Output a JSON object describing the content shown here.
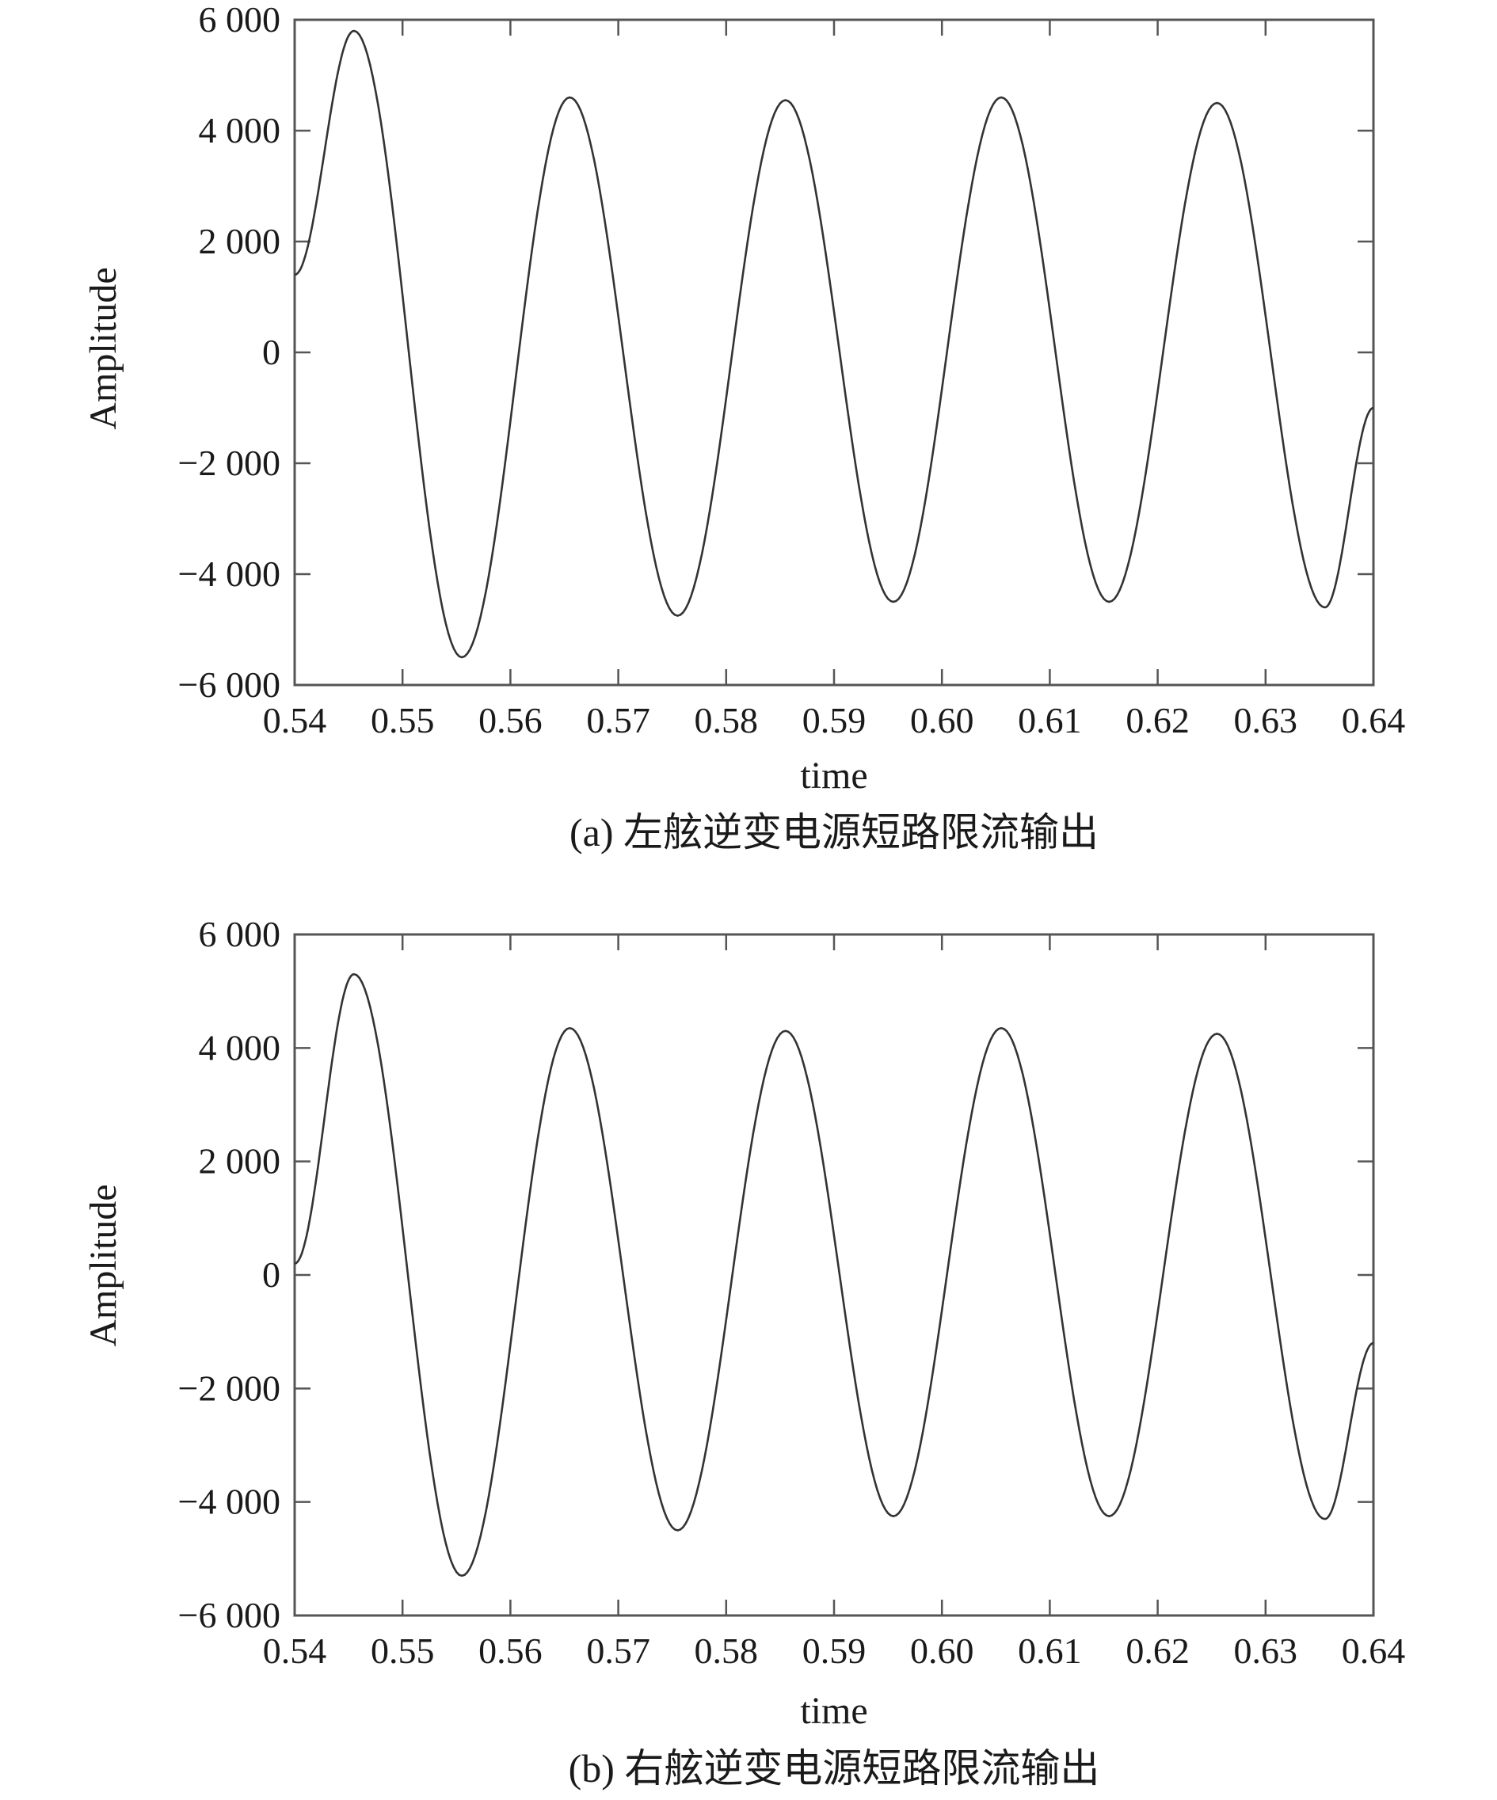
{
  "chart_data": [
    {
      "type": "line",
      "caption": "(a) 左舷逆变电源短路限流输出",
      "xlabel": "time",
      "ylabel": "Amplitude",
      "xlim": [
        0.54,
        0.64
      ],
      "ylim": [
        -6000,
        6000
      ],
      "xticks": [
        0.54,
        0.55,
        0.56,
        0.57,
        0.58,
        0.59,
        0.6,
        0.61,
        0.62,
        0.63,
        0.64
      ],
      "xtick_labels": [
        "0.54",
        "0.55",
        "0.56",
        "0.57",
        "0.58",
        "0.59",
        "0.60",
        "0.61",
        "0.62",
        "0.63",
        "0.64"
      ],
      "yticks": [
        6000,
        4000,
        2000,
        0,
        -2000,
        -4000,
        -6000
      ],
      "ytick_labels": [
        "6 000",
        "4 000",
        "2 000",
        "0",
        "−2 000",
        "−4 000",
        "−6 000"
      ],
      "grid": false,
      "series": [
        {
          "color": "#333333",
          "x": [
            0.54,
            0.5455,
            0.5555,
            0.5655,
            0.5755,
            0.5855,
            0.5955,
            0.6055,
            0.6155,
            0.6255,
            0.6355,
            0.64
          ],
          "y": [
            1400,
            5800,
            -5500,
            4600,
            -4750,
            4550,
            -4500,
            4600,
            -4500,
            4500,
            -4600,
            -1000
          ]
        }
      ]
    },
    {
      "type": "line",
      "caption": "(b) 右舷逆变电源短路限流输出",
      "xlabel": "time",
      "ylabel": "Amplitude",
      "xlim": [
        0.54,
        0.64
      ],
      "ylim": [
        -6000,
        6000
      ],
      "xticks": [
        0.54,
        0.55,
        0.56,
        0.57,
        0.58,
        0.59,
        0.6,
        0.61,
        0.62,
        0.63,
        0.64
      ],
      "xtick_labels": [
        "0.54",
        "0.55",
        "0.56",
        "0.57",
        "0.58",
        "0.59",
        "0.60",
        "0.61",
        "0.62",
        "0.63",
        "0.64"
      ],
      "yticks": [
        6000,
        4000,
        2000,
        0,
        -2000,
        -4000,
        -6000
      ],
      "ytick_labels": [
        "6 000",
        "4 000",
        "2 000",
        "0",
        "−2 000",
        "−4 000",
        "−6 000"
      ],
      "grid": false,
      "series": [
        {
          "color": "#333333",
          "x": [
            0.54,
            0.5455,
            0.5555,
            0.5655,
            0.5755,
            0.5855,
            0.5955,
            0.6055,
            0.6155,
            0.6255,
            0.6355,
            0.64
          ],
          "y": [
            200,
            5300,
            -5300,
            4350,
            -4500,
            4300,
            -4250,
            4350,
            -4250,
            4250,
            -4300,
            -1200
          ]
        }
      ]
    }
  ]
}
